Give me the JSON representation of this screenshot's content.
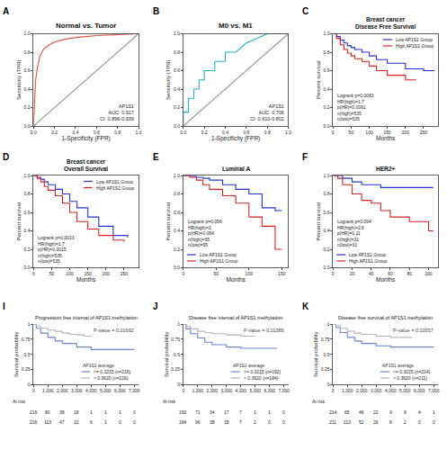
{
  "chart_data": [
    {
      "panel": "A",
      "type": "line",
      "title": "Normal vs. Tumor",
      "xlabel": "1-Specificity (FPR)",
      "ylabel": "Sensitivity (TPR)",
      "xlim": [
        0,
        1
      ],
      "ylim": [
        0,
        1
      ],
      "xticks": [
        {
          "value": 0,
          "label": "0.0"
        },
        0.2,
        0.4,
        0.6,
        0.8,
        {
          "value": 1,
          "label": "1.0"
        }
      ],
      "yticks": [
        {
          "value": 0,
          "label": "0.0"
        },
        0.2,
        0.4,
        0.6,
        0.8,
        {
          "value": 1,
          "label": "1.0"
        }
      ],
      "grid": false,
      "annotation": [
        "AP1S1",
        "AUC: 0.917",
        "CI: 0.896-0.939"
      ],
      "series": [
        {
          "color": "#e0533d",
          "line_style": "solid",
          "x": [
            0,
            0.01,
            0.02,
            0.04,
            0.06,
            0.08,
            0.1,
            0.15,
            0.2,
            0.3,
            0.4,
            0.5,
            0.6,
            0.8,
            1
          ],
          "values": [
            0,
            0.3,
            0.5,
            0.65,
            0.75,
            0.8,
            0.84,
            0.88,
            0.91,
            0.94,
            0.96,
            0.97,
            0.98,
            0.99,
            1
          ]
        },
        {
          "color": "#999999",
          "line_style": "solid",
          "x": [
            0,
            1
          ],
          "values": [
            0,
            1
          ]
        }
      ]
    },
    {
      "panel": "B",
      "type": "line",
      "title": "M0 vs. M1",
      "xlabel": "1-Specificity (FPR)",
      "ylabel": "Sensitivity (TPR)",
      "xlim": [
        0,
        1
      ],
      "ylim": [
        0,
        1
      ],
      "xticks": [
        {
          "value": 0,
          "label": "0.0"
        },
        0.2,
        0.4,
        0.6,
        0.8,
        {
          "value": 1,
          "label": "1.0"
        }
      ],
      "yticks": [
        {
          "value": 0,
          "label": "0.0"
        },
        0.2,
        0.4,
        0.6,
        0.8,
        {
          "value": 1,
          "label": "1.0"
        }
      ],
      "grid": false,
      "annotation": [
        "AP1S1",
        "AUC: 0.706",
        "CI: 0.610-0.802"
      ],
      "series": [
        {
          "color": "#1fb5c8",
          "line_style": "solid",
          "x": [
            0,
            0,
            0.05,
            0.05,
            0.1,
            0.1,
            0.15,
            0.15,
            0.2,
            0.2,
            0.3,
            0.3,
            0.4,
            0.4,
            0.5,
            0.55,
            0.6,
            0.7,
            0.8,
            1
          ],
          "values": [
            0,
            0.15,
            0.15,
            0.3,
            0.3,
            0.4,
            0.4,
            0.5,
            0.5,
            0.6,
            0.6,
            0.7,
            0.7,
            0.8,
            0.8,
            0.85,
            0.9,
            0.95,
            1,
            1
          ]
        },
        {
          "color": "#999999",
          "line_style": "solid",
          "x": [
            0,
            1
          ],
          "values": [
            0,
            1
          ]
        }
      ]
    },
    {
      "panel": "C",
      "type": "line",
      "title": [
        "Breast cancer",
        "Disease Free Survival"
      ],
      "xlabel": "Months",
      "ylabel": "Percent survival",
      "xlim": [
        0,
        290
      ],
      "ylim": [
        0,
        1
      ],
      "xticks": [
        0,
        50,
        100,
        150,
        200,
        250
      ],
      "yticks": [
        {
          "value": 0,
          "label": "0.0"
        },
        0.2,
        0.4,
        0.6,
        0.8,
        {
          "value": 1,
          "label": "1.0"
        }
      ],
      "grid": false,
      "legend": "upper right",
      "stats": [
        "Logrank p=0.0083",
        "HR(high)=1.7",
        "p(HR)=0.0091",
        "n(high)=535",
        "n(low)=535"
      ],
      "series": [
        {
          "name": "Low AP1S1 Group",
          "color": "#2233dd",
          "line_style": "step",
          "x": [
            0,
            10,
            20,
            30,
            40,
            50,
            60,
            80,
            100,
            120,
            150,
            200,
            250,
            280
          ],
          "values": [
            1,
            0.97,
            0.93,
            0.9,
            0.87,
            0.85,
            0.83,
            0.8,
            0.76,
            0.72,
            0.68,
            0.62,
            0.6,
            0.6
          ]
        },
        {
          "name": "High AP1S1 Group",
          "color": "#e02020",
          "line_style": "step",
          "x": [
            0,
            10,
            20,
            30,
            40,
            50,
            60,
            80,
            100,
            120,
            150,
            200,
            230
          ],
          "values": [
            1,
            0.95,
            0.88,
            0.83,
            0.79,
            0.76,
            0.73,
            0.7,
            0.65,
            0.6,
            0.55,
            0.5,
            0.5
          ]
        }
      ]
    },
    {
      "panel": "D",
      "type": "line",
      "title": [
        "Breast cancer",
        "Overall Survival"
      ],
      "xlabel": "Months",
      "ylabel": "Percent survival",
      "xlim": [
        0,
        290
      ],
      "ylim": [
        0,
        1
      ],
      "xticks": [
        0,
        50,
        100,
        150,
        200,
        250
      ],
      "yticks": [
        {
          "value": 0,
          "label": "0.0"
        },
        0.2,
        0.4,
        0.6,
        0.8,
        {
          "value": 1,
          "label": "1.0"
        }
      ],
      "grid": false,
      "legend": "upper right",
      "stats": [
        "Logrank p=0.0013",
        "HR(high)=1.7",
        "p(HR)=0.0015",
        "n(high)=535",
        "n(low)=535"
      ],
      "series": [
        {
          "name": "Low AP1S1 Group",
          "color": "#2233dd",
          "line_style": "step",
          "x": [
            0,
            10,
            20,
            30,
            40,
            60,
            80,
            100,
            120,
            150,
            180,
            220,
            260
          ],
          "values": [
            1,
            0.98,
            0.96,
            0.93,
            0.9,
            0.85,
            0.8,
            0.72,
            0.65,
            0.55,
            0.45,
            0.35,
            0.33
          ]
        },
        {
          "name": "High AP1S1 Group",
          "color": "#e02020",
          "line_style": "step",
          "x": [
            0,
            10,
            20,
            30,
            40,
            60,
            80,
            100,
            120,
            150,
            180,
            220,
            250
          ],
          "values": [
            1,
            0.97,
            0.93,
            0.88,
            0.84,
            0.78,
            0.7,
            0.6,
            0.5,
            0.42,
            0.35,
            0.3,
            0.28
          ]
        }
      ]
    },
    {
      "panel": "E",
      "type": "line",
      "title": "Luminal A",
      "xlabel": "Months",
      "ylabel": "Percent survival",
      "xlim": [
        0,
        160
      ],
      "ylim": [
        0,
        1
      ],
      "xticks": [
        0,
        50,
        100,
        150
      ],
      "yticks": [
        {
          "value": 0,
          "label": "0.0"
        },
        0.2,
        0.4,
        0.6,
        0.8,
        {
          "value": 1,
          "label": "1.0"
        }
      ],
      "grid": false,
      "legend": "lower left",
      "stats": [
        "Logrank p=0.056",
        "HR(high)=2",
        "p(HR)=0.064",
        "n(high)=95",
        "n(low)=95"
      ],
      "series": [
        {
          "name": "Low AP1S1 Group",
          "color": "#2233dd",
          "line_style": "step",
          "x": [
            0,
            10,
            20,
            30,
            40,
            60,
            80,
            100,
            120,
            140,
            150
          ],
          "values": [
            1,
            0.99,
            0.98,
            0.97,
            0.95,
            0.9,
            0.85,
            0.8,
            0.65,
            0.62,
            0.62
          ]
        },
        {
          "name": "High AP1S1 Group",
          "color": "#e02020",
          "line_style": "step",
          "x": [
            0,
            10,
            20,
            30,
            40,
            60,
            80,
            100,
            120,
            140,
            150
          ],
          "values": [
            1,
            0.98,
            0.95,
            0.9,
            0.85,
            0.78,
            0.7,
            0.55,
            0.45,
            0.2,
            0.2
          ]
        }
      ]
    },
    {
      "panel": "F",
      "type": "line",
      "title": "HER2+",
      "xlabel": "Months",
      "ylabel": "Percent survival",
      "xlim": [
        0,
        110
      ],
      "ylim": [
        0,
        1
      ],
      "xticks": [
        0,
        20,
        40,
        60,
        80,
        100
      ],
      "yticks": [
        {
          "value": 0,
          "label": "0.0"
        },
        0.2,
        0.4,
        0.6,
        0.8,
        {
          "value": 1,
          "label": "1.0"
        }
      ],
      "grid": false,
      "legend": "lower left",
      "stats": [
        "Logrank p=0.094",
        "HR(high)=2.6",
        "p(HR)=0.11",
        "n(high)=31",
        "n(low)=31"
      ],
      "series": [
        {
          "name": "Low AP1S1 Group",
          "color": "#2233dd",
          "line_style": "step",
          "x": [
            0,
            5,
            10,
            20,
            30,
            40,
            50,
            60,
            80,
            100,
            105
          ],
          "values": [
            1,
            1,
            0.97,
            0.93,
            0.9,
            0.9,
            0.87,
            0.87,
            0.87,
            0.87,
            0.87
          ]
        },
        {
          "name": "High AP1S1 Group",
          "color": "#e02020",
          "line_style": "step",
          "x": [
            0,
            5,
            10,
            20,
            30,
            40,
            50,
            60,
            80,
            100,
            105
          ],
          "values": [
            1,
            0.97,
            0.9,
            0.8,
            0.73,
            0.7,
            0.62,
            0.55,
            0.5,
            0.4,
            0.4
          ]
        }
      ]
    },
    {
      "panel": "I",
      "type": "line",
      "title": "Progression free interval of AP1S1 methylation",
      "ylabel": "Survival probability",
      "xlim": [
        0,
        7300
      ],
      "ylim": [
        0,
        1
      ],
      "xticks": [
        0,
        {
          "value": 1000,
          "label": "1,000"
        },
        {
          "value": 2000,
          "label": "2,000"
        },
        {
          "value": 3000,
          "label": "3,000"
        },
        {
          "value": 4000,
          "label": "4,000"
        },
        {
          "value": 5000,
          "label": "5,000"
        },
        {
          "value": 6000,
          "label": "6,000"
        },
        {
          "value": 7000,
          "label": "7,000"
        }
      ],
      "yticks": [
        0,
        0.25,
        0.5,
        0.75,
        1
      ],
      "grid": false,
      "legend": "lower right",
      "legend_title": "AP1S1 average",
      "annotation": [
        "P-value = 0.01692"
      ],
      "at_risk_label": "At risk",
      "at_risk": [
        [
          216,
          80,
          38,
          18,
          1,
          1,
          1,
          0
        ],
        [
          216,
          113,
          47,
          22,
          6,
          1,
          0,
          0
        ]
      ],
      "series": [
        {
          "name": "<= 0.3215 (n=216)",
          "color": "#6b82d6",
          "line_style": "step",
          "x": [
            0,
            200,
            500,
            1000,
            1500,
            2000,
            3000,
            4000,
            5000,
            6000,
            7000
          ],
          "values": [
            1,
            0.93,
            0.85,
            0.78,
            0.72,
            0.68,
            0.62,
            0.58,
            0.58,
            0.58,
            0.58
          ]
        },
        {
          "name": "> 0.3620 (n=216)",
          "color": "#b5b5b5",
          "line_style": "step",
          "x": [
            0,
            200,
            500,
            1000,
            1500,
            2000,
            2500,
            3000,
            3500,
            4000
          ],
          "values": [
            1,
            0.97,
            0.93,
            0.9,
            0.88,
            0.85,
            0.83,
            0.82,
            0.8,
            0.8
          ]
        }
      ]
    },
    {
      "panel": "J",
      "type": "line",
      "title": "Disease free interval of AP1S1 methylation",
      "ylabel": "Survival probability",
      "xlim": [
        0,
        7300
      ],
      "ylim": [
        0,
        1
      ],
      "xticks": [
        0,
        {
          "value": 1000,
          "label": "1,000"
        },
        {
          "value": 2000,
          "label": "2,000"
        },
        {
          "value": 3000,
          "label": "3,000"
        },
        {
          "value": 4000,
          "label": "4,000"
        },
        {
          "value": 5000,
          "label": "5,000"
        },
        {
          "value": 6000,
          "label": "6,000"
        },
        {
          "value": 7000,
          "label": "7,000"
        }
      ],
      "yticks": [
        0,
        0.25,
        0.5,
        0.75,
        1
      ],
      "grid": false,
      "legend": "lower right",
      "legend_title": "AP1S1 average",
      "annotation": [
        "P-value = 0.01386"
      ],
      "at_risk_label": "At risk",
      "at_risk": [
        [
          192,
          71,
          34,
          17,
          7,
          1,
          1,
          0
        ],
        [
          184,
          96,
          38,
          18,
          7,
          2,
          0,
          0
        ]
      ],
      "series": [
        {
          "name": "<= 0.3215 (n=192)",
          "color": "#6b82d6",
          "line_style": "step",
          "x": [
            0,
            200,
            500,
            1000,
            1500,
            2000,
            3000,
            4000,
            5000,
            6500
          ],
          "values": [
            1,
            0.92,
            0.84,
            0.77,
            0.7,
            0.66,
            0.62,
            0.6,
            0.6,
            0.6
          ]
        },
        {
          "name": "> 0.3620 (n=184)",
          "color": "#b5b5b5",
          "line_style": "step",
          "x": [
            0,
            200,
            500,
            1000,
            1500,
            2000,
            3000,
            4000,
            5000
          ],
          "values": [
            1,
            0.96,
            0.92,
            0.88,
            0.86,
            0.84,
            0.82,
            0.8,
            0.8
          ]
        }
      ]
    },
    {
      "panel": "K",
      "type": "line",
      "title": "Disease free survival of AP1S1 methylation",
      "ylabel": "Survival probability",
      "xlim": [
        0,
        7300
      ],
      "ylim": [
        0,
        1
      ],
      "xticks": [
        0,
        {
          "value": 1000,
          "label": "1,000"
        },
        {
          "value": 2000,
          "label": "2,000"
        },
        {
          "value": 3000,
          "label": "3,000"
        },
        {
          "value": 4000,
          "label": "4,000"
        },
        {
          "value": 5000,
          "label": "5,000"
        },
        {
          "value": 6000,
          "label": "6,000"
        },
        {
          "value": 7000,
          "label": "7,000"
        }
      ],
      "yticks": [
        0,
        0.25,
        0.5,
        0.75,
        1
      ],
      "grid": false,
      "legend": "lower right",
      "legend_title": "AP1S1 average",
      "annotation": [
        "P-value = 0.02657"
      ],
      "at_risk_label": "At risk",
      "at_risk": [
        [
          214,
          65,
          46,
          22,
          9,
          8,
          4,
          1
        ],
        [
          211,
          113,
          52,
          26,
          8,
          2,
          0,
          0
        ]
      ],
      "series": [
        {
          "name": "<= 0.3215 (n=214)",
          "color": "#6b82d6",
          "line_style": "step",
          "x": [
            0,
            200,
            500,
            1000,
            1500,
            2000,
            3000,
            4000,
            5500,
            7000
          ],
          "values": [
            1,
            0.94,
            0.86,
            0.78,
            0.72,
            0.68,
            0.64,
            0.62,
            0.62,
            0.62
          ]
        },
        {
          "name": "> 0.3620 (n=211)",
          "color": "#b5b5b5",
          "line_style": "step",
          "x": [
            0,
            200,
            500,
            1000,
            1500,
            2000,
            3000,
            4000,
            5500
          ],
          "values": [
            1,
            0.97,
            0.93,
            0.88,
            0.85,
            0.83,
            0.8,
            0.78,
            0.78
          ]
        }
      ]
    }
  ]
}
